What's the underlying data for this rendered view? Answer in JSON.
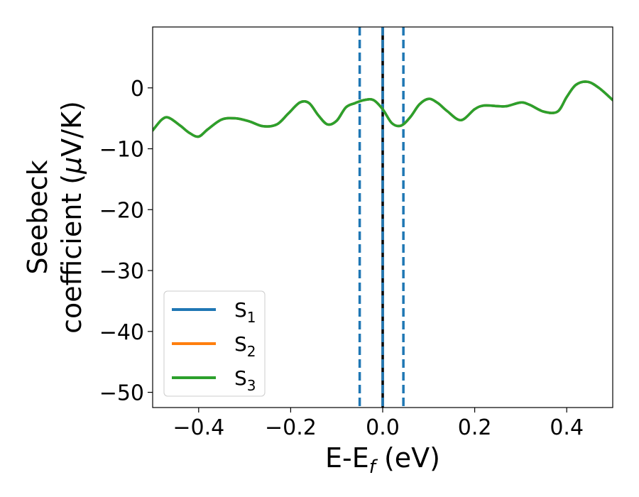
{
  "chart_data": {
    "type": "line",
    "xlabel": {
      "base": "E-E",
      "sub": "f",
      "unit": " (eV)"
    },
    "ylabel": {
      "line1": "Seebeck",
      "line2_pre": "coefficient  (",
      "line2_mu": "μ",
      "line2_post": "V/K)"
    },
    "xlim": [
      -0.5,
      0.5
    ],
    "ylim": [
      -52.5,
      10
    ],
    "xticks": [
      -0.4,
      -0.2,
      0.0,
      0.2,
      0.4
    ],
    "xtick_labels": [
      "−0.4",
      "−0.2",
      "0.0",
      "0.2",
      "0.4"
    ],
    "yticks": [
      0,
      -10,
      -20,
      -30,
      -40,
      -50
    ],
    "ytick_labels": [
      "0",
      "−10",
      "−20",
      "−30",
      "−40",
      "−50"
    ],
    "vlines": [
      {
        "x": -0.05,
        "style": "dashed",
        "color": "#1f77b4"
      },
      {
        "x": 0.0,
        "style": "solid",
        "color": "#000000"
      },
      {
        "x": 0.0,
        "style": "dashed",
        "color": "#1f77b4"
      },
      {
        "x": 0.045,
        "style": "dashed",
        "color": "#1f77b4"
      }
    ],
    "x": [
      -0.5,
      -0.48,
      -0.465,
      -0.44,
      -0.42,
      -0.4,
      -0.38,
      -0.35,
      -0.32,
      -0.29,
      -0.26,
      -0.23,
      -0.205,
      -0.18,
      -0.16,
      -0.14,
      -0.12,
      -0.1,
      -0.08,
      -0.06,
      -0.04,
      -0.02,
      0.0,
      0.02,
      0.04,
      0.06,
      0.08,
      0.1,
      0.12,
      0.14,
      0.17,
      0.2,
      0.22,
      0.25,
      0.27,
      0.3,
      0.32,
      0.35,
      0.38,
      0.4,
      0.42,
      0.445,
      0.47,
      0.5
    ],
    "series": [
      {
        "name": "S",
        "sub": "1",
        "color": "#1f77b4",
        "values": [
          -7.0,
          -5.2,
          -4.9,
          -6.2,
          -7.4,
          -8.0,
          -6.8,
          -5.2,
          -5.0,
          -5.5,
          -6.3,
          -6.0,
          -4.2,
          -2.4,
          -2.5,
          -4.5,
          -6.0,
          -5.4,
          -3.2,
          -2.5,
          -2.0,
          -2.0,
          -3.5,
          -5.8,
          -6.2,
          -4.8,
          -2.7,
          -1.8,
          -2.5,
          -3.8,
          -5.3,
          -3.5,
          -2.9,
          -3.0,
          -3.0,
          -2.4,
          -2.8,
          -3.9,
          -3.9,
          -1.5,
          0.5,
          1.0,
          0.0,
          -2.0
        ]
      },
      {
        "name": "S",
        "sub": "2",
        "color": "#ff7f0e",
        "values": [
          -7.0,
          -5.2,
          -4.9,
          -6.2,
          -7.4,
          -8.0,
          -6.8,
          -5.2,
          -5.0,
          -5.5,
          -6.3,
          -6.0,
          -4.2,
          -2.4,
          -2.5,
          -4.5,
          -6.0,
          -5.4,
          -3.2,
          -2.5,
          -2.0,
          -2.0,
          -3.5,
          -5.8,
          -6.2,
          -4.8,
          -2.7,
          -1.8,
          -2.5,
          -3.8,
          -5.3,
          -3.5,
          -2.9,
          -3.0,
          -3.0,
          -2.4,
          -2.8,
          -3.9,
          -3.9,
          -1.5,
          0.5,
          1.0,
          0.0,
          -2.0
        ]
      },
      {
        "name": "S",
        "sub": "3",
        "color": "#2ca02c",
        "values": [
          -7.0,
          -5.2,
          -4.9,
          -6.2,
          -7.4,
          -8.0,
          -6.8,
          -5.2,
          -5.0,
          -5.5,
          -6.3,
          -6.0,
          -4.2,
          -2.4,
          -2.5,
          -4.5,
          -6.0,
          -5.4,
          -3.2,
          -2.5,
          -2.0,
          -2.0,
          -3.5,
          -5.8,
          -6.2,
          -4.8,
          -2.7,
          -1.8,
          -2.5,
          -3.8,
          -5.3,
          -3.5,
          -2.9,
          -3.0,
          -3.0,
          -2.4,
          -2.8,
          -3.9,
          -3.9,
          -1.5,
          0.5,
          1.0,
          0.0,
          -2.0
        ]
      }
    ],
    "legend_position": "lower-left",
    "grid": false
  }
}
